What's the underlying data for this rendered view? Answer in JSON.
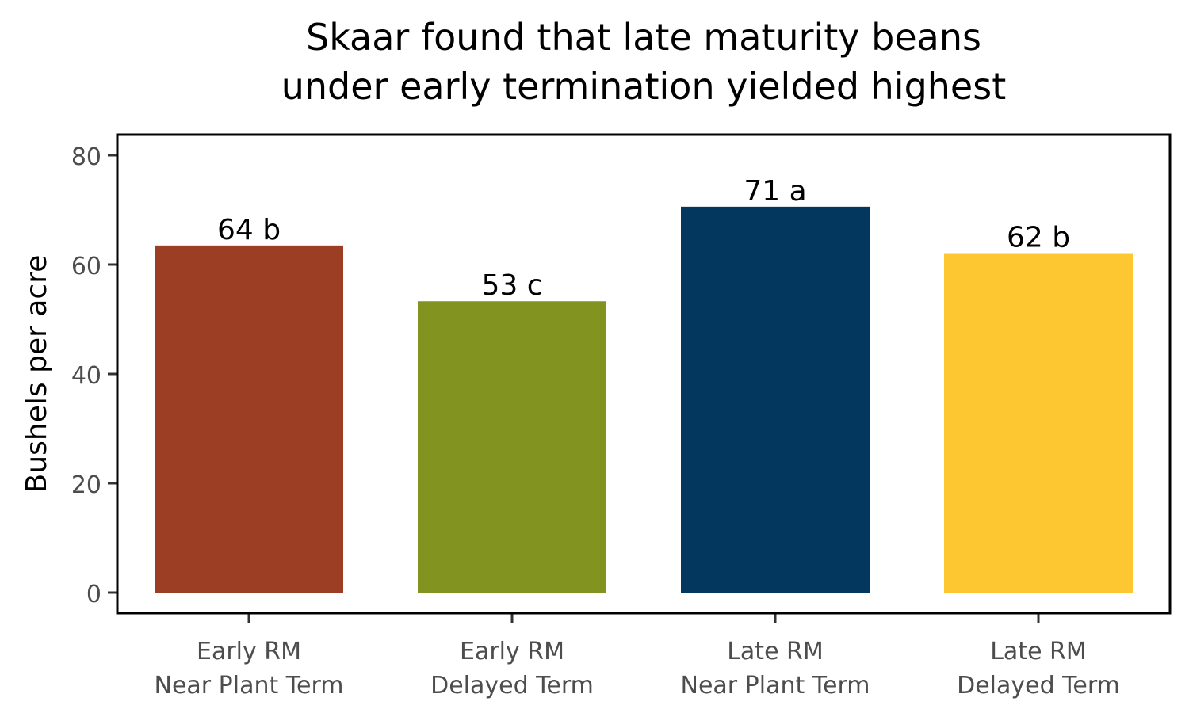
{
  "chart_data": {
    "type": "bar",
    "title_lines": [
      "Skaar found that late maturity beans",
      "under early termination yielded highest"
    ],
    "xlabel": "",
    "ylabel": "Bushels per acre",
    "ylim": [
      0,
      84
    ],
    "yticks": [
      0,
      20,
      40,
      60,
      80
    ],
    "grid": false,
    "legend": "none",
    "categories": [
      [
        "Early RM",
        "Near Plant Term"
      ],
      [
        "Early RM",
        "Delayed Term"
      ],
      [
        "Late RM",
        "Near Plant Term"
      ],
      [
        "Late RM",
        "Delayed Term"
      ]
    ],
    "values": [
      63.5,
      53.3,
      70.6,
      62.1
    ],
    "data_labels": [
      "64 b",
      "53 c",
      "71 a",
      "62 b"
    ],
    "colors": [
      "#9c3e23",
      "#82931f",
      "#03375d",
      "#fdc731"
    ]
  }
}
